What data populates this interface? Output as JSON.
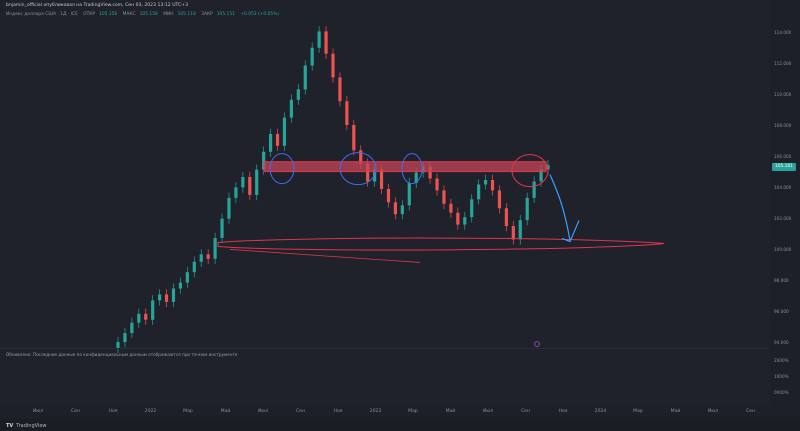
{
  "header": {
    "caption": "bnjamin_official опубликовал на TradingView.com, Сен 03, 2023 13:12 UTC+3",
    "indicator": {
      "symbol": "Индекс доллара США · 1Д · ICE",
      "open_label": "ОТКР",
      "open_value": "105.156",
      "high_label": "МАКС",
      "high_value": "105.158",
      "low_label": "МИН",
      "low_value": "105.118",
      "close_label": "ЗАКР",
      "close_value": "105.151",
      "change": "+0.053 (+0.05%)"
    }
  },
  "price_axis": {
    "ticks": [
      "114.000",
      "112.000",
      "110.000",
      "108.000",
      "106.000",
      "104.000",
      "102.000",
      "100.000",
      "98.000",
      "96.000",
      "94.000"
    ],
    "current_price": "105.161",
    "lower_ticks": [
      "2000%",
      "1000%",
      "0000%"
    ]
  },
  "time_axis": {
    "ticks": [
      "Июл",
      "Сен",
      "Ноя",
      "2022",
      "Мар",
      "Май",
      "Июл",
      "Сен",
      "Ноя",
      "2023",
      "Мар",
      "Май",
      "Июл",
      "Сен",
      "Ноя",
      "2024",
      "Мар",
      "Май",
      "Июл",
      "Сен"
    ]
  },
  "note": "Обновлено: Последние данные по конфиденциальным данным отображаются при точном инструменте",
  "footer": {
    "brand": "TradingView"
  },
  "colors": {
    "candle_up": "#26a69a",
    "candle_down": "#ef5350",
    "resistance_zone": "#d65a6a",
    "annotation_blue": "#3d6df2",
    "annotation_red": "#e0364a",
    "arrow": "#3aa0ff"
  },
  "chart_data": {
    "type": "candlestick",
    "title": "",
    "closes": [
      93.2,
      93.8,
      94.5,
      95.1,
      94.7,
      96.0,
      96.4,
      95.9,
      96.8,
      97.2,
      97.9,
      98.6,
      99.1,
      98.8,
      100.2,
      101.5,
      102.9,
      103.6,
      104.3,
      103.1,
      104.8,
      106.0,
      107.2,
      106.4,
      108.3,
      109.5,
      110.2,
      111.8,
      113.0,
      114.1,
      112.6,
      111.0,
      109.4,
      107.8,
      106.1,
      105.2,
      104.0,
      104.8,
      103.5,
      102.6,
      101.8,
      102.4,
      103.9,
      104.6,
      105.0,
      104.2,
      103.4,
      102.5,
      101.9,
      101.1,
      101.6,
      102.8,
      103.8,
      104.1,
      103.4,
      102.2,
      101.0,
      100.1,
      101.4,
      102.9,
      104.0,
      104.8,
      105.1
    ],
    "resistance_zone": [
      104.8,
      105.2
    ],
    "support_level": 99.9,
    "ylim": [
      93,
      115
    ]
  }
}
